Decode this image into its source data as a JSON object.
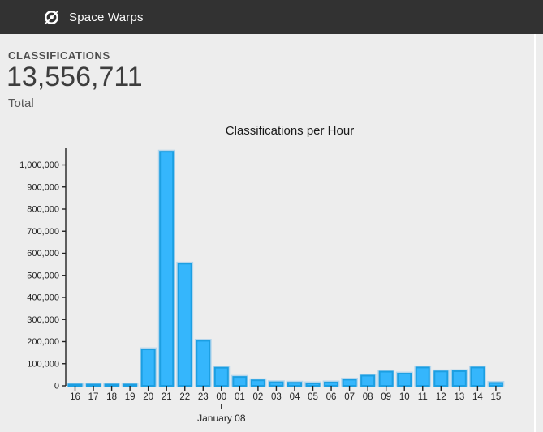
{
  "navbar": {
    "title": "Space Warps",
    "logo_icon": "zooniverse-logo-icon",
    "bg_color": "#323232"
  },
  "stats": {
    "heading": "CLASSIFICATIONS",
    "total_value": "13,556,711",
    "total_label": "Total"
  },
  "chart_data": {
    "type": "bar",
    "title": "Classifications per Hour",
    "xlabel": "",
    "ylabel": "",
    "categories": [
      "16",
      "17",
      "18",
      "19",
      "20",
      "21",
      "22",
      "23",
      "00",
      "01",
      "02",
      "03",
      "04",
      "05",
      "06",
      "07",
      "08",
      "09",
      "10",
      "11",
      "12",
      "13",
      "14",
      "15"
    ],
    "values": [
      2500,
      2500,
      3500,
      4500,
      165000,
      1060000,
      553000,
      204000,
      82000,
      40000,
      25000,
      16000,
      14000,
      11000,
      15000,
      28000,
      46000,
      64000,
      55000,
      83000,
      65000,
      66000,
      83000,
      13000
    ],
    "x_annotation": {
      "label": "January 08",
      "category_index": 8
    },
    "ylim": [
      0,
      1000000
    ],
    "y_tick_step": 100000,
    "grid": false,
    "legend": false,
    "bar_color": "#35b6fc",
    "bar_border_color": "#1c9fe2",
    "bar_glow_color": "#b5d6ec",
    "axis_color": "#222222"
  },
  "layout_colors": {
    "page_bg": "#ededed",
    "divider": "#ffffff"
  }
}
